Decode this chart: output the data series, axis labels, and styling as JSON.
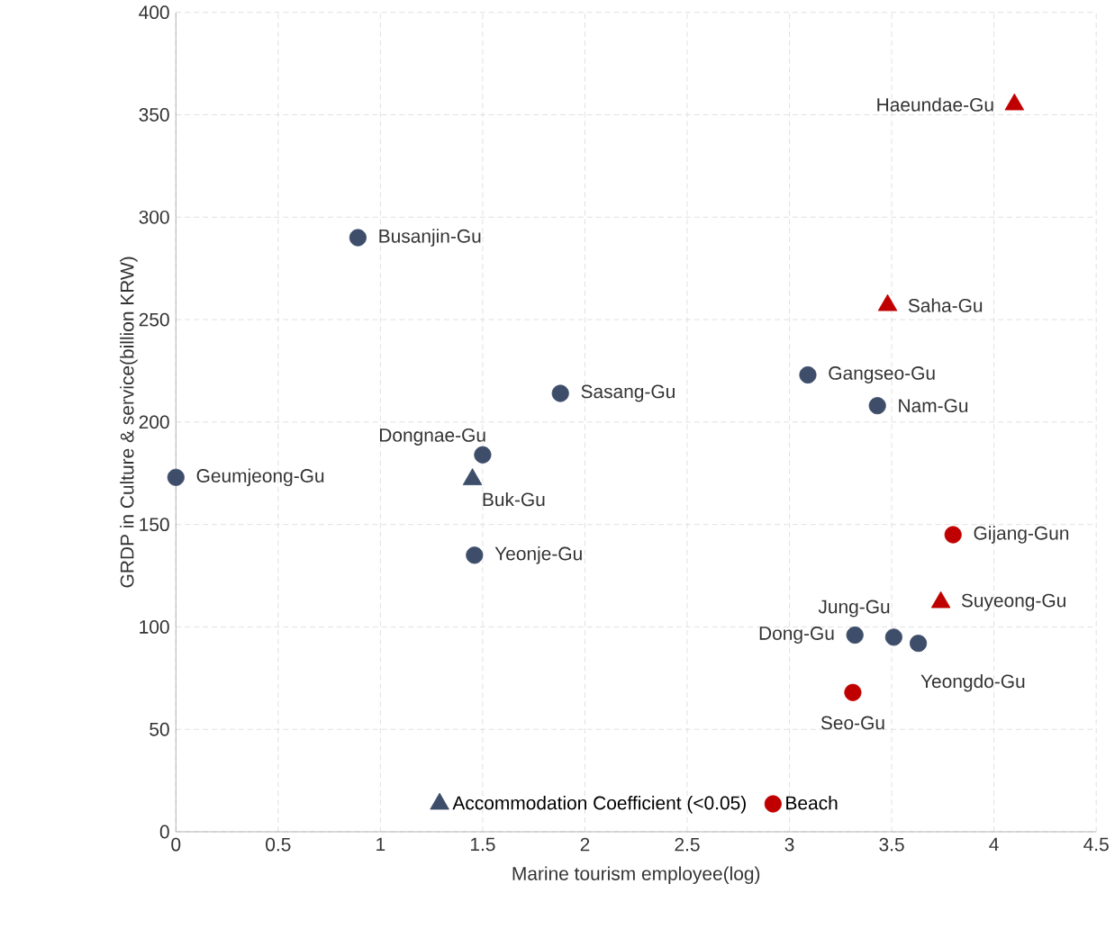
{
  "chart_data": {
    "type": "scatter",
    "xlabel": "Marine tourism employee(log)",
    "ylabel": "GRDP in Culture & service(billion KRW)",
    "xlim": [
      0,
      4.5
    ],
    "ylim": [
      0,
      400
    ],
    "xticks": [
      0,
      0.5,
      1,
      1.5,
      2,
      2.5,
      3,
      3.5,
      4,
      4.5
    ],
    "yticks": [
      0,
      50,
      100,
      150,
      200,
      250,
      300,
      350,
      400
    ],
    "grid": true,
    "legend": "bottom",
    "series": [
      {
        "color": "#3d4d6a",
        "marker": "circle",
        "x": [
          0,
          0.89,
          1.5,
          1.46,
          1.88,
          3.09,
          3.43,
          3.32,
          3.51,
          3.63
        ],
        "values": [
          173,
          290,
          184,
          135,
          214,
          223,
          208,
          96,
          95,
          92
        ]
      },
      {
        "name": "Accommodation Coefficient (<0.05)",
        "color": "#3d4d6a",
        "marker": "triangle",
        "x": [
          1.45
        ],
        "values": [
          172
        ]
      },
      {
        "name": "Beach",
        "color": "#c00000",
        "marker": "circle",
        "x": [
          3.8,
          3.31
        ],
        "values": [
          145,
          68
        ]
      },
      {
        "color": "#c00000",
        "marker": "triangle",
        "x": [
          4.1,
          3.48,
          3.74
        ],
        "values": [
          355,
          257,
          112
        ]
      }
    ],
    "annotations": [
      {
        "text": "Geumjeong-Gu",
        "x": 0,
        "y": 173
      },
      {
        "text": "Busanjin-Gu",
        "x": 0.89,
        "y": 290
      },
      {
        "text": "Dongnae-Gu",
        "x": 1.5,
        "y": 184
      },
      {
        "text": "Buk-Gu",
        "x": 1.45,
        "y": 172
      },
      {
        "text": "Yeonje-Gu",
        "x": 1.46,
        "y": 135
      },
      {
        "text": "Sasang-Gu",
        "x": 1.88,
        "y": 214
      },
      {
        "text": "Gangseo-Gu",
        "x": 3.09,
        "y": 223
      },
      {
        "text": "Nam-Gu",
        "x": 3.43,
        "y": 208
      },
      {
        "text": "Haeundae-Gu",
        "x": 4.1,
        "y": 355
      },
      {
        "text": "Saha-Gu",
        "x": 3.48,
        "y": 257
      },
      {
        "text": "Gijang-Gun",
        "x": 3.8,
        "y": 145
      },
      {
        "text": "Jung-Gu",
        "x": 3.51,
        "y": 95
      },
      {
        "text": "Suyeong-Gu",
        "x": 3.74,
        "y": 112
      },
      {
        "text": "Dong-Gu",
        "x": 3.32,
        "y": 96
      },
      {
        "text": "Yeongdo-Gu",
        "x": 3.63,
        "y": 92
      },
      {
        "text": "Seo-Gu",
        "x": 3.31,
        "y": 68
      }
    ]
  }
}
